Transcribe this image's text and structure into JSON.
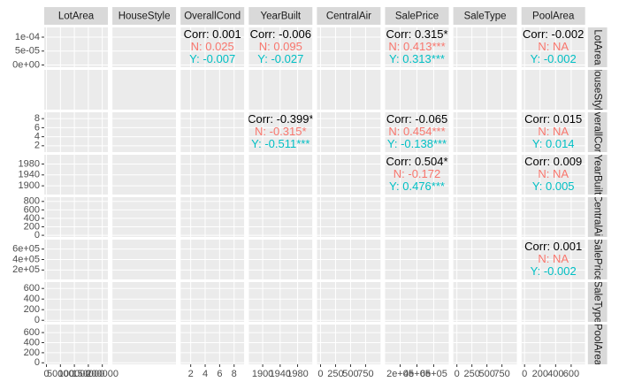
{
  "chart_data": {
    "type": "pairs",
    "variables": [
      "LotArea",
      "HouseStyle",
      "OverallCond",
      "YearBuilt",
      "CentralAir",
      "SalePrice",
      "SaleType",
      "PoolArea"
    ],
    "group_colors": [
      "#F8766D",
      "#00BFC4"
    ],
    "x_axes": [
      {
        "lim": [
          -8000,
          220000
        ],
        "ticks": [
          0,
          50000,
          100000,
          150000,
          200000
        ]
      },
      null,
      {
        "lim": [
          0.6,
          9.4
        ],
        "ticks": [
          2,
          4,
          6,
          8
        ]
      },
      {
        "lim": [
          1868,
          2014
        ],
        "ticks": [
          1900,
          1940,
          1980
        ]
      },
      {
        "lim": [
          -60,
          1000
        ],
        "ticks": [
          0,
          250,
          500,
          750
        ]
      },
      {
        "lim": [
          20000,
          780000
        ],
        "ticks": [
          {
            "value": 200000,
            "label": "2e+05"
          },
          {
            "value": 400000,
            "label": "4e+05"
          },
          {
            "value": 600000,
            "label": "6e+05"
          }
        ]
      },
      {
        "lim": [
          -60,
          1000
        ],
        "ticks": [
          0,
          250,
          500,
          750
        ]
      },
      {
        "lim": [
          -40,
          780
        ],
        "ticks": [
          0,
          200,
          400,
          600
        ]
      }
    ],
    "y_axes": [
      {
        "lim": [
          -8e-06,
          0.000135
        ],
        "ticks": [
          {
            "value": 0,
            "label": "0e+00"
          },
          {
            "value": 5e-05,
            "label": "5e-05"
          },
          {
            "value": 0.0001,
            "label": "1e-04"
          }
        ]
      },
      null,
      {
        "lim": [
          0.6,
          9.4
        ],
        "ticks": [
          2,
          4,
          6,
          8
        ]
      },
      {
        "lim": [
          1868,
          2014
        ],
        "ticks": [
          1900,
          1940,
          1980
        ]
      },
      {
        "lim": [
          -40,
          900
        ],
        "ticks": [
          0,
          200,
          400,
          600,
          800
        ]
      },
      {
        "lim": [
          20000,
          780000
        ],
        "ticks": [
          {
            "value": 200000,
            "label": "2e+05"
          },
          {
            "value": 400000,
            "label": "4e+05"
          },
          {
            "value": 600000,
            "label": "6e+05"
          }
        ]
      },
      {
        "lim": [
          -30,
          720
        ],
        "ticks": [
          0,
          200,
          400,
          600
        ]
      },
      {
        "lim": [
          -30,
          760
        ],
        "ticks": [
          0,
          200,
          400,
          600
        ]
      }
    ],
    "correlations": [
      [
        null,
        null,
        [
          "Corr: 0.001",
          "N: 0.025",
          "Y: -0.007"
        ],
        [
          "Corr: -0.006",
          "N: 0.095",
          "Y: -0.027"
        ],
        null,
        [
          "Corr: 0.315*",
          "N: 0.413***",
          "Y: 0.313***"
        ],
        null,
        [
          "Corr: -0.002",
          "N:   NA",
          "Y: -0.002"
        ]
      ],
      [
        null,
        null,
        null,
        null,
        null,
        null,
        null,
        null
      ],
      [
        null,
        null,
        null,
        [
          "Corr: -0.399*",
          "N: -0.315*",
          "Y: -0.511***"
        ],
        null,
        [
          "Corr: -0.065",
          "N: 0.454***",
          "Y: -0.138***"
        ],
        null,
        [
          "Corr: 0.015",
          "N:   NA",
          "Y: 0.014"
        ]
      ],
      [
        null,
        null,
        null,
        null,
        null,
        [
          "Corr: 0.504*",
          "N: -0.172",
          "Y: 0.476***"
        ],
        null,
        [
          "Corr: 0.009",
          "N:   NA",
          "Y: 0.005"
        ]
      ],
      [
        null,
        null,
        null,
        null,
        null,
        null,
        null,
        null
      ],
      [
        null,
        null,
        null,
        null,
        null,
        null,
        null,
        [
          "Corr: 0.001",
          "N:   NA",
          "Y: -0.002"
        ]
      ],
      [
        null,
        null,
        null,
        null,
        null,
        null,
        null,
        null
      ],
      [
        null,
        null,
        null,
        null,
        null,
        null,
        null,
        null
      ]
    ]
  }
}
